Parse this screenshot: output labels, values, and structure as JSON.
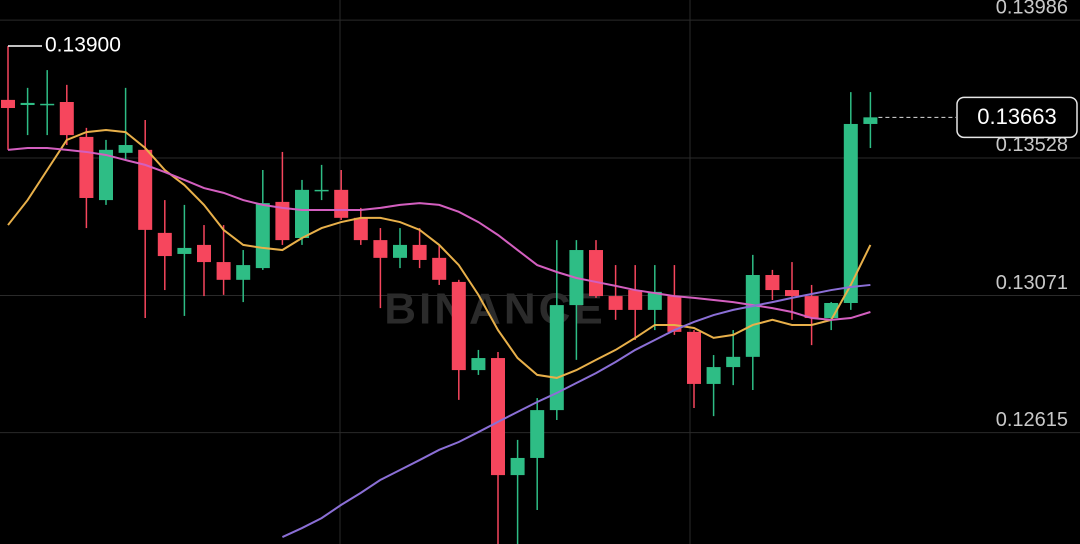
{
  "chart_data": {
    "type": "candlestick",
    "watermark": "BINANCE",
    "ylim": [
      0.12245,
      0.14053
    ],
    "yticks": [
      0.13986,
      0.13528,
      0.13071,
      0.12615
    ],
    "grid": true,
    "up_color": "#2ebd85",
    "down_color": "#f6465d",
    "open": [
      0.13721,
      0.13704,
      0.13704,
      0.13714,
      0.13598,
      0.13388,
      0.13545,
      0.13555,
      0.13279,
      0.13209,
      0.13239,
      0.13182,
      0.13123,
      0.13162,
      0.13382,
      0.13262,
      0.13418,
      0.13422,
      0.13329,
      0.13255,
      0.13196,
      0.13239,
      0.13196,
      0.13116,
      0.12823,
      0.12863,
      0.12474,
      0.12531,
      0.1269,
      0.13039,
      0.13222,
      0.13069,
      0.13089,
      0.13023,
      0.13069,
      0.1295,
      0.12777,
      0.12833,
      0.12867,
      0.13139,
      0.13089,
      0.13069,
      0.12996,
      0.13046,
      0.13641
    ],
    "high": [
      0.139,
      0.13761,
      0.1382,
      0.13771,
      0.13628,
      0.13588,
      0.13761,
      0.13654,
      0.13388,
      0.13372,
      0.13305,
      0.13305,
      0.13222,
      0.13488,
      0.13548,
      0.13455,
      0.13505,
      0.13488,
      0.13362,
      0.13295,
      0.13295,
      0.13295,
      0.13239,
      0.13123,
      0.1289,
      0.12883,
      0.12591,
      0.1273,
      0.13255,
      0.13255,
      0.13255,
      0.13172,
      0.13172,
      0.13172,
      0.13172,
      0.12956,
      0.12873,
      0.12956,
      0.13206,
      0.13156,
      0.13182,
      0.13106,
      0.13049,
      0.13747,
      0.13747
    ],
    "low": [
      0.13555,
      0.13604,
      0.13604,
      0.13571,
      0.13295,
      0.13372,
      0.13521,
      0.12996,
      0.13089,
      0.13003,
      0.13069,
      0.13073,
      0.13049,
      0.13156,
      0.13239,
      0.13239,
      0.13388,
      0.13322,
      0.13239,
      0.13029,
      0.13162,
      0.13162,
      0.13106,
      0.12724,
      0.12807,
      0.12245,
      0.12245,
      0.12358,
      0.12657,
      0.12857,
      0.13063,
      0.1299,
      0.12923,
      0.12956,
      0.1294,
      0.12697,
      0.1267,
      0.12773,
      0.12757,
      0.13056,
      0.1299,
      0.12906,
      0.12956,
      0.13023,
      0.13561
    ],
    "close": [
      0.13694,
      0.13711,
      0.13708,
      0.13604,
      0.13395,
      0.13555,
      0.13571,
      0.13289,
      0.13202,
      0.13229,
      0.13182,
      0.13123,
      0.13172,
      0.13378,
      0.13255,
      0.13422,
      0.13422,
      0.13329,
      0.13255,
      0.13196,
      0.13239,
      0.13189,
      0.13123,
      0.12823,
      0.12863,
      0.12474,
      0.12531,
      0.1269,
      0.13039,
      0.13222,
      0.13069,
      0.13023,
      0.13023,
      0.13083,
      0.1295,
      0.12777,
      0.12833,
      0.12867,
      0.13139,
      0.13089,
      0.13069,
      0.12996,
      0.13046,
      0.13641,
      0.13663
    ],
    "lines": [
      {
        "color": "#e8b04a",
        "values": [
          0.13305,
          0.13388,
          0.13488,
          0.13588,
          0.13614,
          0.13621,
          0.13614,
          0.13561,
          0.13488,
          0.13438,
          0.13372,
          0.13289,
          0.13239,
          0.13229,
          0.13222,
          0.13262,
          0.13295,
          0.13315,
          0.13329,
          0.13329,
          0.13315,
          0.13289,
          0.13239,
          0.13172,
          0.13073,
          0.12956,
          0.12863,
          0.12807,
          0.12797,
          0.12823,
          0.12857,
          0.1289,
          0.1293,
          0.12973,
          0.12973,
          0.12963,
          0.1293,
          0.1294,
          0.12973,
          0.1299,
          0.12973,
          0.12973,
          0.1299,
          0.13106,
          0.13239
        ]
      },
      {
        "color": "#d35fbf",
        "values": [
          0.13555,
          0.13561,
          0.13561,
          0.13555,
          0.13548,
          0.13538,
          0.13521,
          0.13505,
          0.13481,
          0.13455,
          0.13428,
          0.13412,
          0.13388,
          0.13372,
          0.13362,
          0.13355,
          0.13355,
          0.13355,
          0.13355,
          0.13362,
          0.13372,
          0.13378,
          0.13372,
          0.13349,
          0.13315,
          0.13272,
          0.13222,
          0.13172,
          0.13149,
          0.13129,
          0.13116,
          0.13103,
          0.13089,
          0.13079,
          0.13069,
          0.13063,
          0.13056,
          0.13049,
          0.13039,
          0.13029,
          0.13016,
          0.12996,
          0.1299,
          0.12996,
          0.13016
        ]
      },
      {
        "color": "#8b6fd6",
        "values": [
          null,
          null,
          null,
          null,
          null,
          null,
          null,
          null,
          null,
          null,
          null,
          null,
          null,
          null,
          0.12268,
          0.12298,
          0.12331,
          0.12375,
          0.12415,
          0.12458,
          0.12491,
          0.12524,
          0.12558,
          0.12584,
          0.12617,
          0.12651,
          0.12684,
          0.12717,
          0.12747,
          0.1278,
          0.12813,
          0.1285,
          0.1289,
          0.12923,
          0.12956,
          0.12983,
          0.13006,
          0.13023,
          0.13036,
          0.13049,
          0.13063,
          0.13076,
          0.13089,
          0.13099,
          0.13106
        ]
      }
    ],
    "high_label": {
      "value": 0.139,
      "label": "0.13900"
    },
    "last_price": 0.13663
  }
}
